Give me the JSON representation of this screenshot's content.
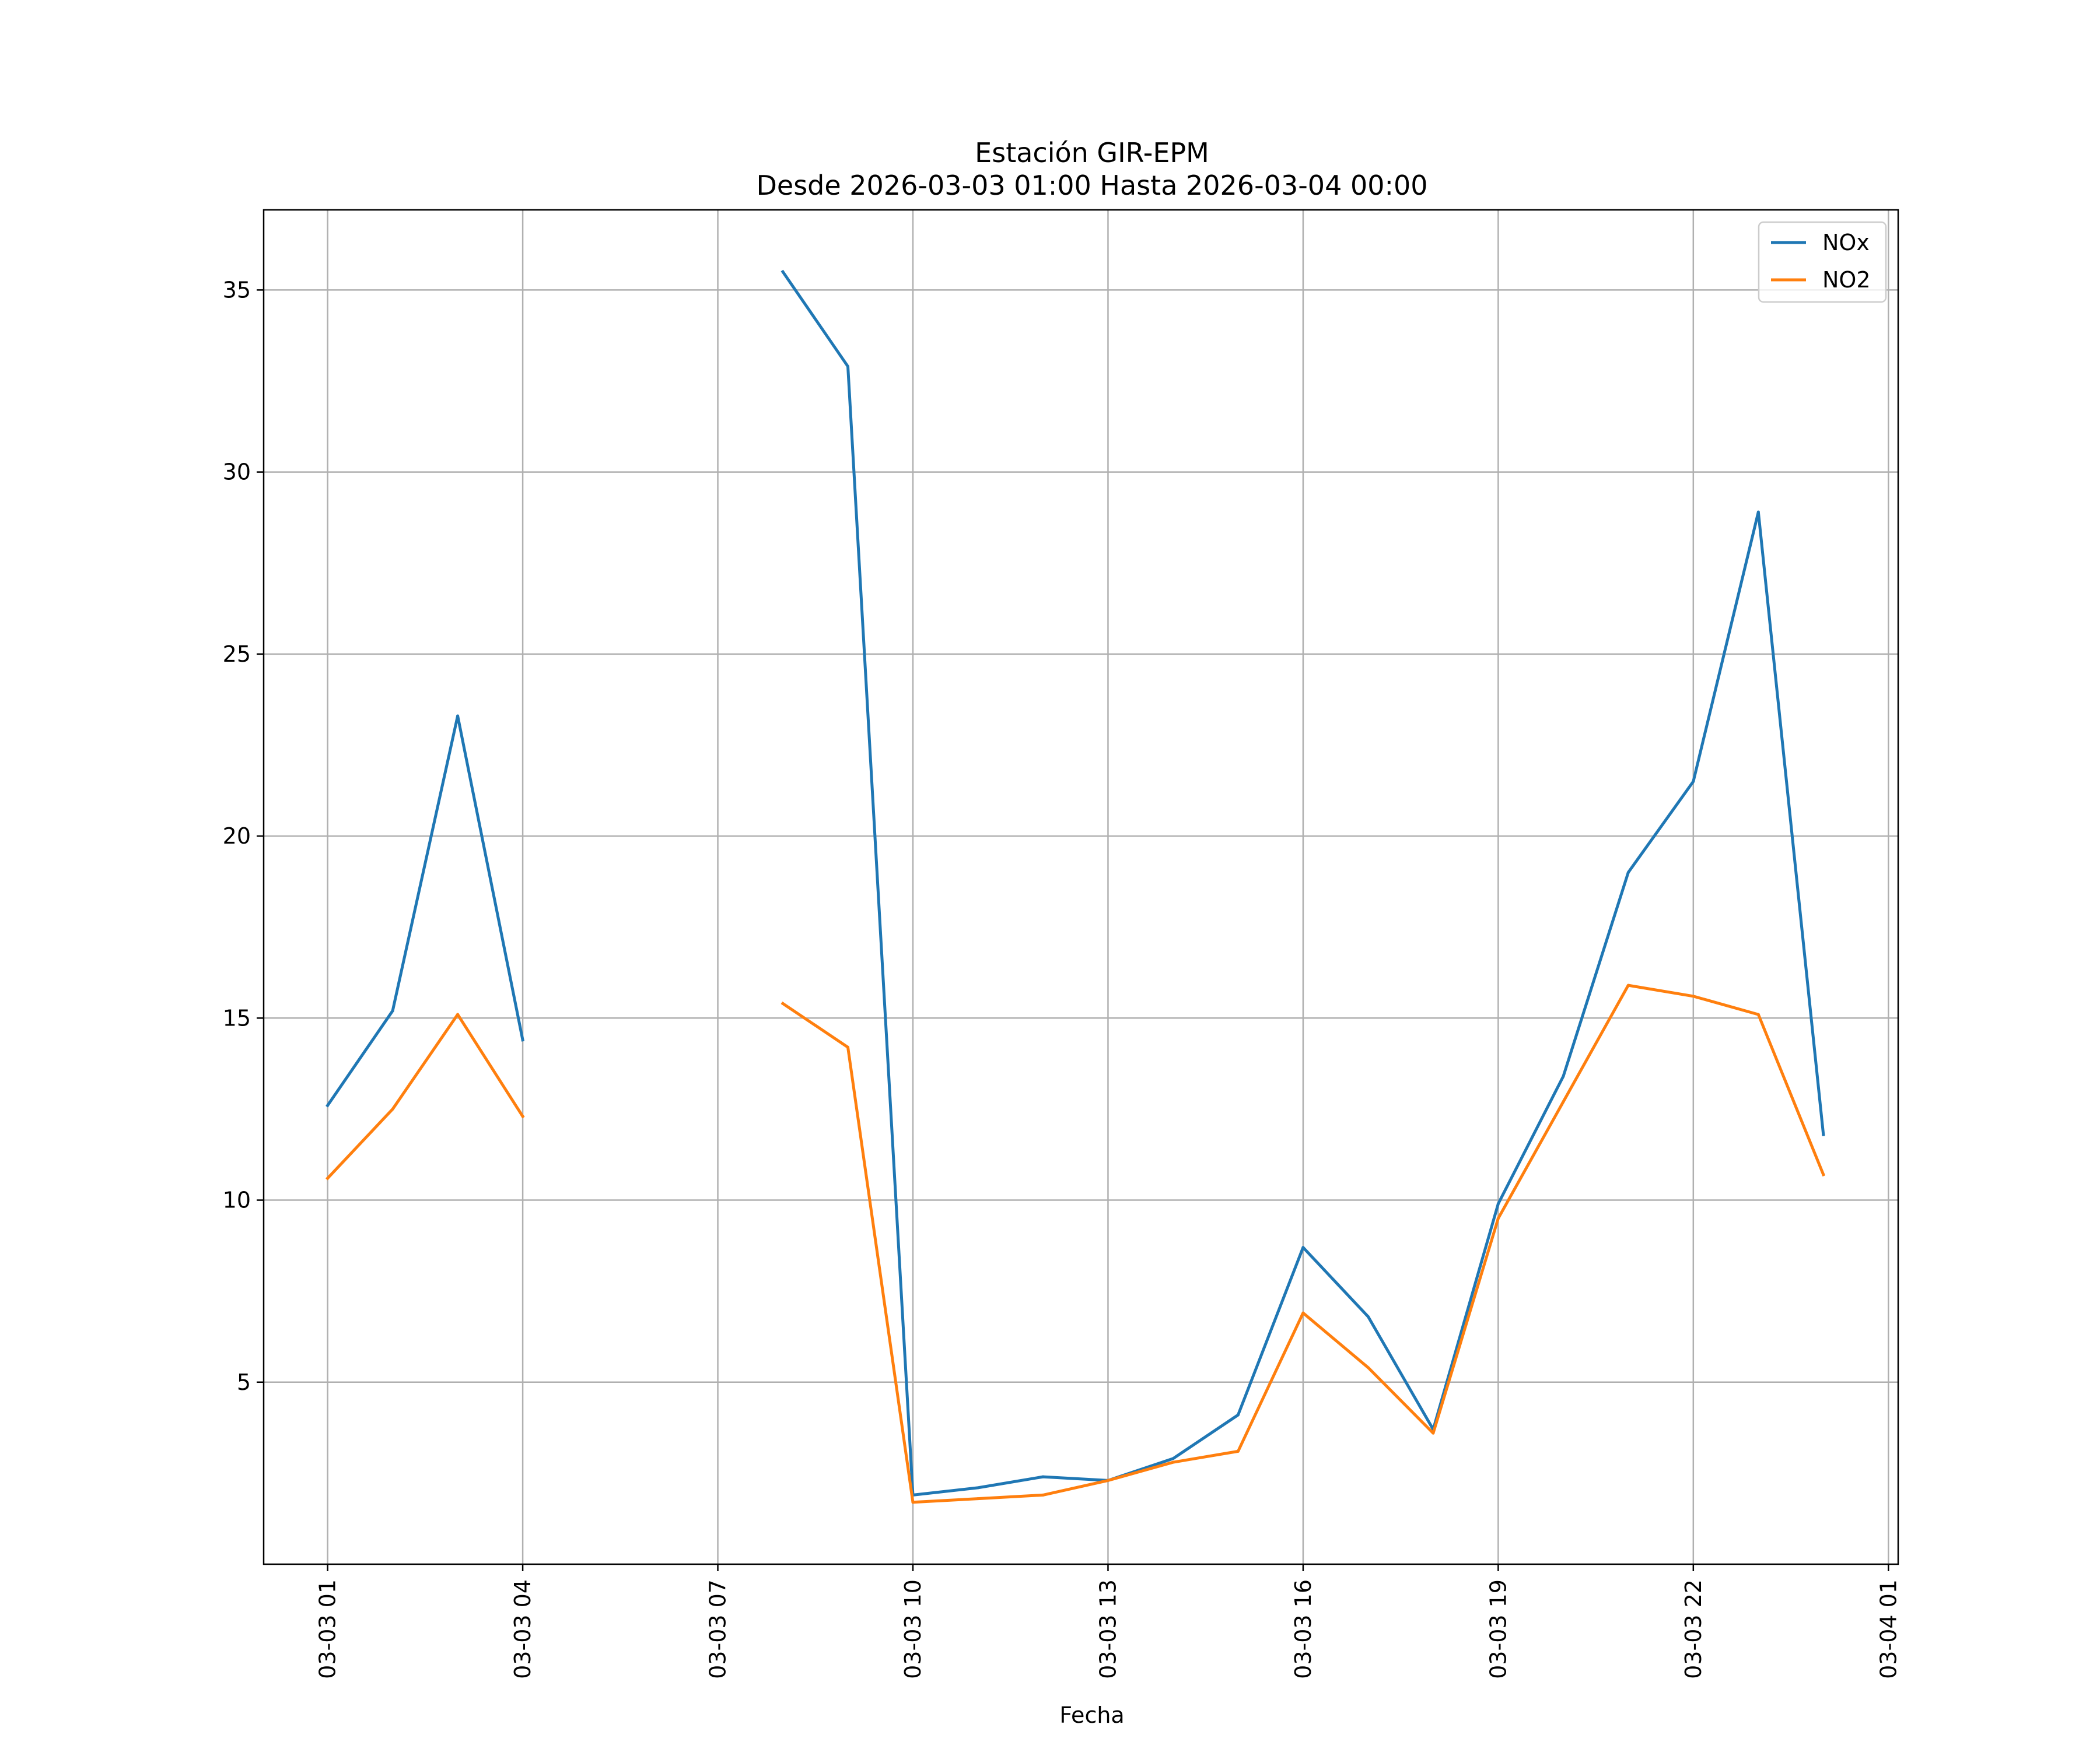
{
  "chart_data": {
    "type": "line",
    "title": "Estación GIR-EPM",
    "subtitle": "Desde 2026-03-03 01:00 Hasta 2026-03-04 00:00",
    "xlabel": "Fecha",
    "ylabel": "",
    "x_ticks": [
      "03-03 01",
      "03-03 04",
      "03-03 07",
      "03-03 10",
      "03-03 13",
      "03-03 16",
      "03-03 19",
      "03-03 22",
      "03-04 01"
    ],
    "y_ticks": [
      5,
      10,
      15,
      20,
      25,
      30,
      35
    ],
    "xlim": [
      "2026-03-03 00:01",
      "2026-03-04 01:09"
    ],
    "ylim": [
      0,
      37.2
    ],
    "grid": true,
    "legend_position": "top-right",
    "x": [
      "2026-03-03 01:00",
      "2026-03-03 02:00",
      "2026-03-03 03:00",
      "2026-03-03 04:00",
      "2026-03-03 05:00",
      "2026-03-03 06:00",
      "2026-03-03 07:00",
      "2026-03-03 08:00",
      "2026-03-03 09:00",
      "2026-03-03 10:00",
      "2026-03-03 11:00",
      "2026-03-03 12:00",
      "2026-03-03 13:00",
      "2026-03-03 14:00",
      "2026-03-03 15:00",
      "2026-03-03 16:00",
      "2026-03-03 17:00",
      "2026-03-03 18:00",
      "2026-03-03 19:00",
      "2026-03-03 20:00",
      "2026-03-03 21:00",
      "2026-03-03 22:00",
      "2026-03-03 23:00",
      "2026-03-04 00:00"
    ],
    "series": [
      {
        "name": "NOx",
        "color": "#1f77b4",
        "values": [
          12.6,
          15.2,
          23.3,
          14.4,
          null,
          null,
          null,
          35.5,
          32.9,
          1.9,
          2.1,
          2.4,
          2.3,
          2.9,
          4.1,
          8.7,
          6.8,
          3.7,
          9.9,
          13.4,
          19.0,
          21.5,
          28.9,
          11.8
        ]
      },
      {
        "name": "NO2",
        "color": "#ff7f0e",
        "values": [
          10.6,
          12.5,
          15.1,
          12.3,
          null,
          null,
          null,
          15.4,
          14.2,
          1.7,
          1.8,
          1.9,
          2.3,
          2.8,
          3.1,
          6.9,
          5.4,
          3.6,
          9.5,
          12.7,
          15.9,
          15.6,
          15.1,
          10.7
        ]
      }
    ]
  }
}
